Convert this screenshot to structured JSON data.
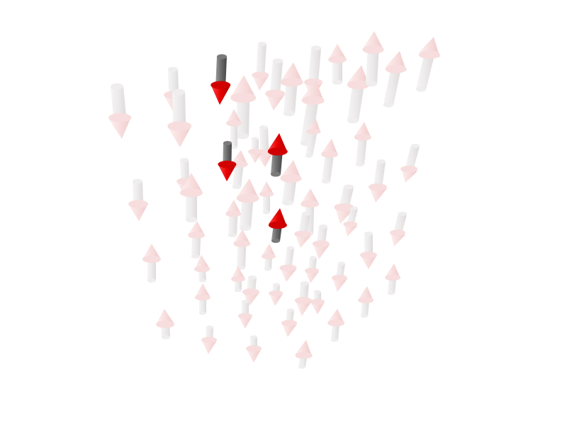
{
  "scene": {
    "background": "#ffffff",
    "arrow_colors": {
      "shaft_light": "#f4f2f2",
      "shaft_dark": "#d9d6d6",
      "head_light": "#fbeaea",
      "head_dark": "#f1cccc",
      "hi_shaft_light": "#8a8a8a",
      "hi_shaft_dark": "#4f4f4f",
      "hi_head_light": "#ff2a2a",
      "hi_head_dark": "#b80000"
    },
    "highlighted_count": 4,
    "faded_count": 60
  }
}
